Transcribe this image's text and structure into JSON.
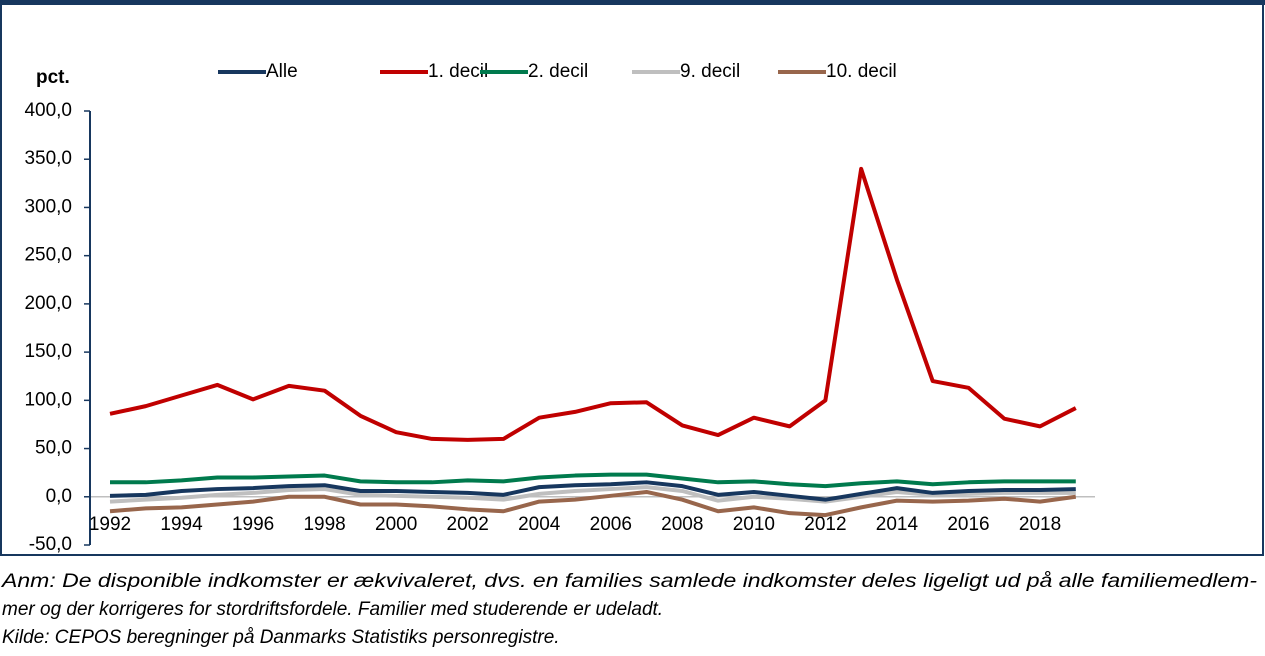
{
  "chart_data": {
    "type": "line",
    "ylabel": "pct.",
    "categories": [
      "1992",
      null,
      "1994",
      null,
      "1996",
      null,
      "1998",
      null,
      "2000",
      null,
      "2002",
      null,
      "2004",
      null,
      "2006",
      null,
      "2008",
      null,
      "2010",
      null,
      "2012",
      null,
      "2014",
      null,
      "2016",
      null,
      "2018",
      null
    ],
    "series": [
      {
        "name": "Alle",
        "color": "#17375e",
        "values": [
          1,
          2,
          6,
          8,
          9,
          11,
          12,
          6,
          6,
          5,
          4,
          2,
          10,
          12,
          13,
          15,
          11,
          2,
          5,
          1,
          -3,
          3,
          9,
          4,
          6,
          7,
          7,
          8
        ]
      },
      {
        "name": "1. decil",
        "color": "#c00000",
        "values": [
          86,
          94,
          105,
          116,
          101,
          115,
          110,
          84,
          67,
          60,
          59,
          60,
          82,
          88,
          97,
          98,
          74,
          64,
          82,
          73,
          100,
          340,
          225,
          120,
          113,
          81,
          73,
          92
        ]
      },
      {
        "name": "2. decil",
        "color": "#007a4d",
        "values": [
          15,
          15,
          17,
          20,
          20,
          21,
          22,
          16,
          15,
          15,
          17,
          16,
          20,
          22,
          23,
          23,
          19,
          15,
          16,
          13,
          11,
          14,
          16,
          13,
          15,
          16,
          16,
          16
        ]
      },
      {
        "name": "9. decil",
        "color": "#bfbfbf",
        "values": [
          -5,
          -3,
          -1,
          2,
          4,
          7,
          8,
          2,
          1,
          0,
          -1,
          -3,
          3,
          6,
          8,
          10,
          6,
          -4,
          0,
          -2,
          -5,
          0,
          5,
          2,
          3,
          4,
          4,
          4
        ]
      },
      {
        "name": "10. decil",
        "color": "#98664c",
        "values": [
          -15,
          -12,
          -11,
          -8,
          -5,
          0,
          0,
          -8,
          -8,
          -10,
          -13,
          -15,
          -5,
          -3,
          1,
          5,
          -3,
          -15,
          -11,
          -17,
          -19,
          -11,
          -4,
          -5,
          -4,
          -2,
          -5,
          0
        ]
      }
    ],
    "ylim": [
      -50,
      400
    ],
    "yticks": [
      {
        "value": -50,
        "label": "-50,0"
      },
      {
        "value": 0,
        "label": "0,0"
      },
      {
        "value": 50,
        "label": "50,0"
      },
      {
        "value": 100,
        "label": "100,0"
      },
      {
        "value": 150,
        "label": "150,0"
      },
      {
        "value": 200,
        "label": "200,0"
      },
      {
        "value": 250,
        "label": "250,0"
      },
      {
        "value": 300,
        "label": "300,0"
      },
      {
        "value": 350,
        "label": "350,0"
      },
      {
        "value": 400,
        "label": "400,0"
      }
    ],
    "legend": "top",
    "notes": [
      "Anm: De disponible indkomster er ækvivaleret, dvs. en families samlede indkomster deles ligeligt ud på alle familiemedlem-",
      "mer og der korrigeres for stordriftsfordele. Familier med studerende er udeladt.",
      "Kilde: CEPOS beregninger på Danmarks Statistiks personregistre."
    ]
  }
}
